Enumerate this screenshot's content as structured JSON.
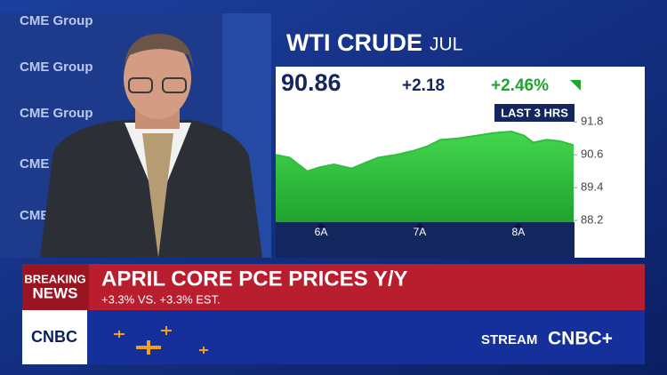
{
  "chart_data": {
    "type": "area",
    "title": "WTI CRUDE",
    "subtitle": "JUL",
    "range_label": "LAST 3 HRS",
    "x": [
      5.54,
      5.68,
      5.86,
      5.99,
      6.13,
      6.31,
      6.44,
      6.58,
      6.76,
      6.94,
      7.07,
      7.21,
      7.39,
      7.57,
      7.75,
      7.93,
      8.06,
      8.15,
      8.29,
      8.42,
      8.56
    ],
    "values": [
      90.6,
      90.5,
      90.0,
      90.15,
      90.25,
      90.1,
      90.3,
      90.5,
      90.6,
      90.75,
      90.9,
      91.15,
      91.2,
      91.3,
      91.4,
      91.45,
      91.3,
      91.05,
      91.15,
      91.1,
      90.95
    ],
    "color": "#2fbf3c",
    "xlim": [
      5.54,
      8.56
    ],
    "xticks": [
      {
        "value": 6,
        "label": "6A"
      },
      {
        "value": 7,
        "label": "7A"
      },
      {
        "value": 8,
        "label": "8A"
      }
    ],
    "ylim": [
      88.14,
      92.62
    ],
    "yticks": [
      91.8,
      90.6,
      89.4,
      88.2
    ]
  },
  "quote": {
    "last": "90.86",
    "change": "+2.18",
    "change_pct": "+2.46%"
  },
  "backdrop": {
    "sponsor": "CME Group"
  },
  "ticker": {
    "breaking": "BREAKING",
    "news": "NEWS",
    "headline": "APRIL CORE PCE PRICES Y/Y",
    "subline": "+3.3% VS. +3.3% EST.",
    "logo": "CNBC",
    "stream": "STREAM",
    "brand": "CNBC+"
  }
}
